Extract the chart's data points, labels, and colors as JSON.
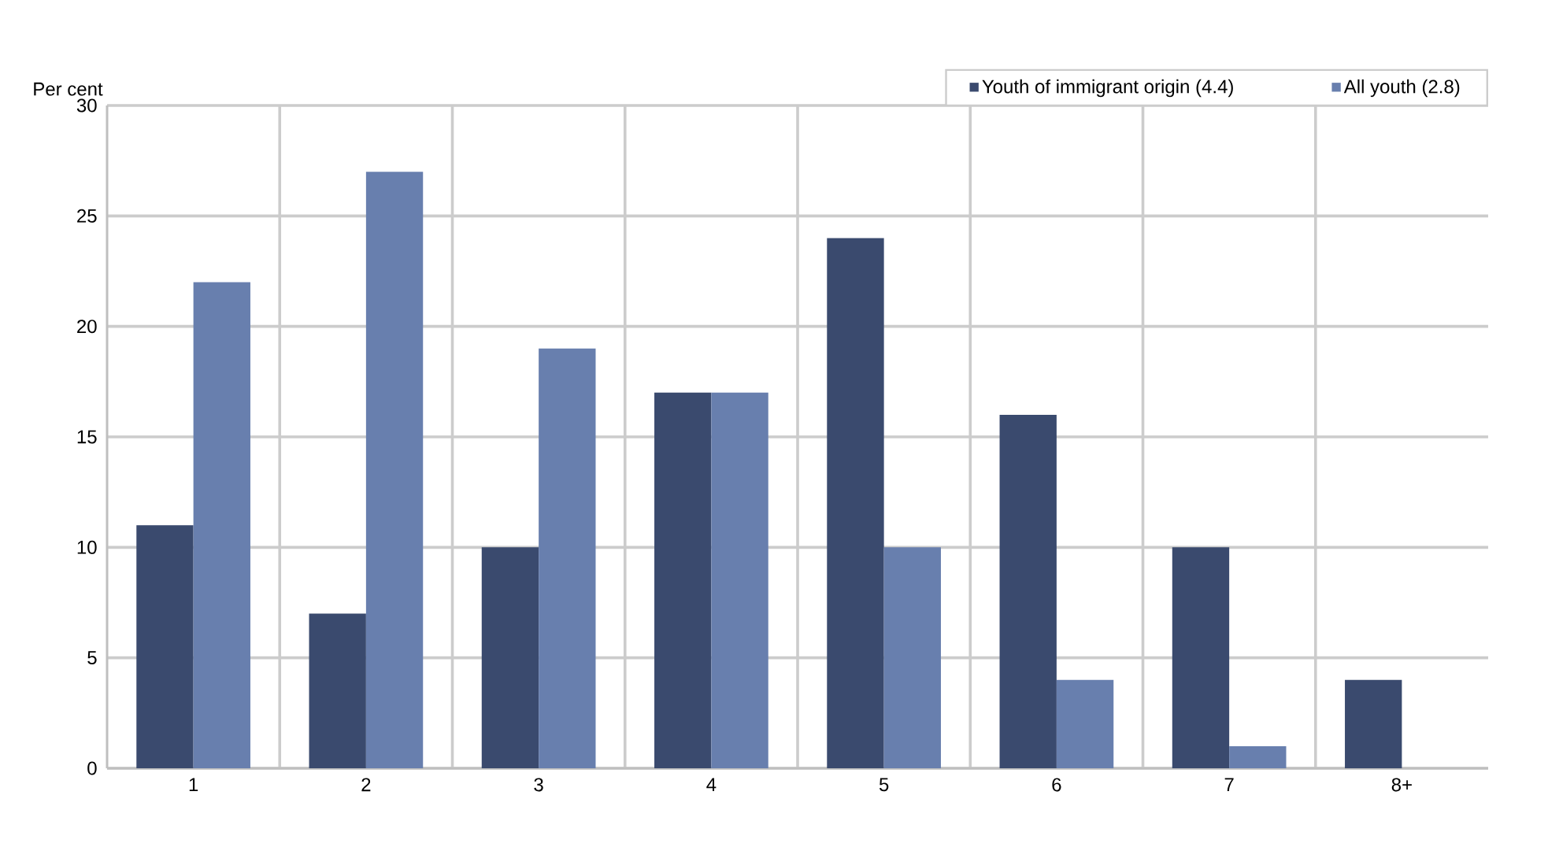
{
  "chart_data": {
    "type": "bar",
    "ylabel": "Per cent",
    "categories": [
      "1",
      "2",
      "3",
      "4",
      "5",
      "6",
      "7",
      "8+"
    ],
    "series": [
      {
        "name": "Youth of immigrant origin (4.4)",
        "color": "#3a4a6e",
        "values": [
          11,
          7,
          10,
          17,
          24,
          16,
          10,
          4
        ]
      },
      {
        "name": "All youth (2.8)",
        "color": "#687fae",
        "values": [
          22,
          27,
          19,
          17,
          10,
          4,
          1,
          null
        ]
      }
    ],
    "ylim": [
      0,
      30
    ],
    "yticks": [
      0,
      5,
      10,
      15,
      20,
      25,
      30
    ],
    "grid": true,
    "legend": "top right"
  }
}
